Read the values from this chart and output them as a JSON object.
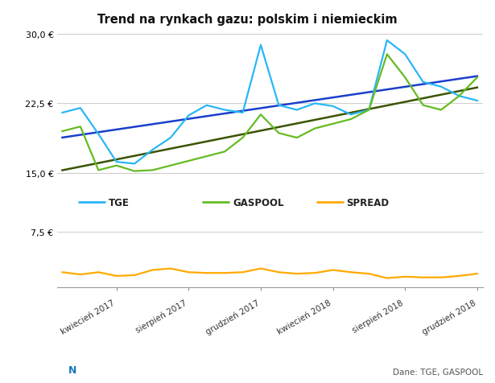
{
  "title": "Trend na rynkach gazu: polskim i niemieckim",
  "source": "Dane: TGE, GASPOOL",
  "x_labels": [
    "kwiecień 2017",
    "sierpień 2017",
    "grudzień 2017",
    "kwiecień 2018",
    "sierpień 2018",
    "grudzień 2018"
  ],
  "x_tick_pos": [
    3,
    7,
    11,
    15,
    19,
    23
  ],
  "tge_color": "#29b6f6",
  "gaspool_color": "#66bb22",
  "spread_color": "#ffaa00",
  "trend_tge_color": "#1a3fcc",
  "trend_gaspool_color": "#3a5500",
  "tge": [
    21.5,
    22.0,
    19.2,
    16.2,
    16.0,
    17.5,
    18.8,
    21.2,
    22.3,
    21.8,
    21.5,
    28.8,
    22.3,
    21.8,
    22.5,
    22.2,
    21.3,
    21.8,
    29.3,
    27.8,
    24.8,
    24.3,
    23.3,
    22.8
  ],
  "gaspool": [
    19.5,
    20.0,
    15.3,
    15.8,
    15.2,
    15.3,
    15.8,
    16.3,
    16.8,
    17.3,
    18.8,
    21.3,
    19.3,
    18.8,
    19.8,
    20.3,
    20.8,
    21.8,
    27.8,
    25.3,
    22.3,
    21.8,
    23.3,
    25.3
  ],
  "spread": [
    2.0,
    1.7,
    2.0,
    1.5,
    1.6,
    2.3,
    2.5,
    2.0,
    1.9,
    1.9,
    2.0,
    2.5,
    2.0,
    1.8,
    1.9,
    2.3,
    2.0,
    1.8,
    1.2,
    1.4,
    1.3,
    1.3,
    1.5,
    1.8
  ],
  "upper_ylim": [
    15.0,
    30.0
  ],
  "upper_yticks": [
    15.0,
    22.5,
    30.0
  ],
  "upper_ytick_labels": [
    "15,0 €",
    "22,5 €",
    "30,0 €"
  ],
  "lower_ylim": [
    0.0,
    7.5
  ],
  "lower_yticks": [
    7.5
  ],
  "lower_ytick_labels": [
    "7,5 €"
  ],
  "bg_color": "#ffffff",
  "grid_color": "#cccccc",
  "logo_bg": "#1878be",
  "n_points": 24
}
